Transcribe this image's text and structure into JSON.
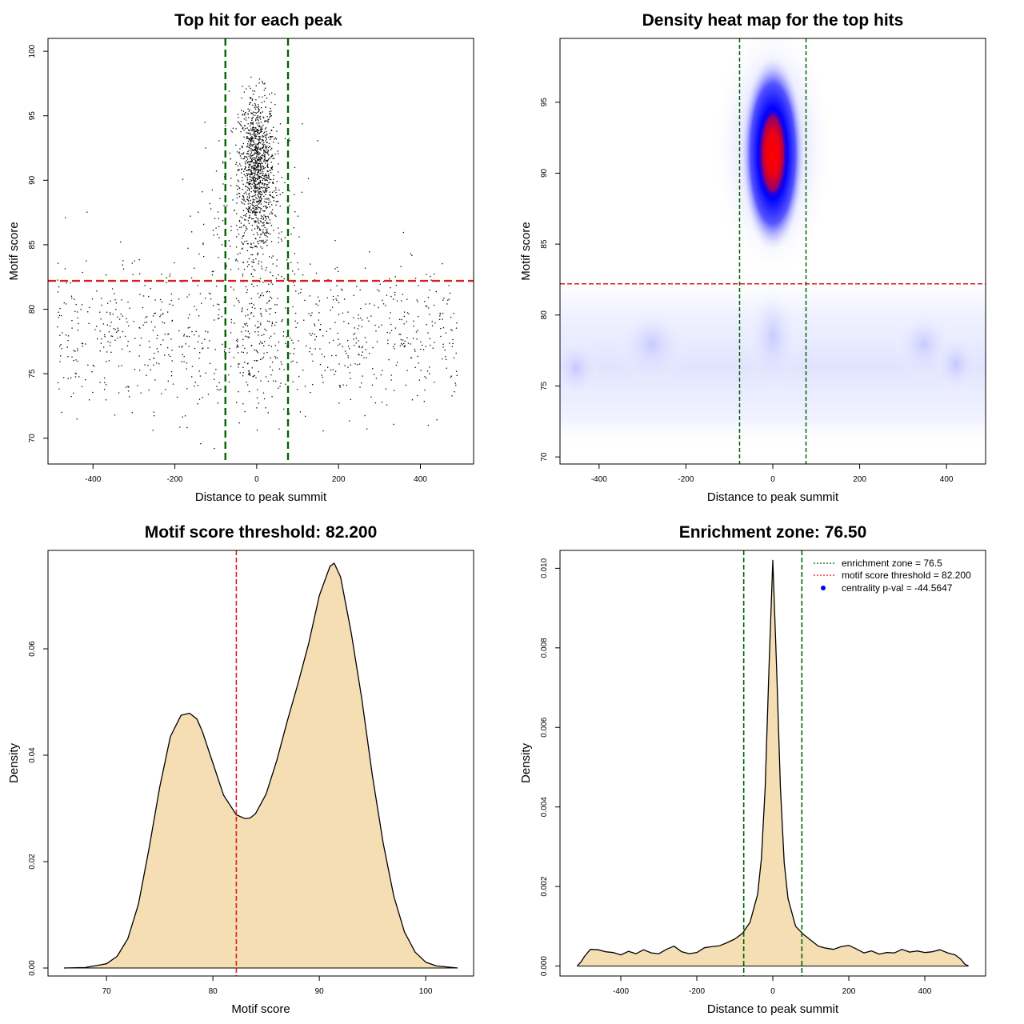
{
  "chart_data": [
    {
      "type": "scatter",
      "title": "Top hit for each peak",
      "xlabel": "Distance to peak summit",
      "ylabel": "Motif score",
      "xlim": [
        -510,
        530
      ],
      "ylim": [
        68,
        101
      ],
      "xticks": [
        -400,
        -200,
        0,
        200,
        400
      ],
      "yticks": [
        70,
        75,
        80,
        85,
        90,
        95,
        100
      ],
      "threshold_score": 82.2,
      "zone_lines": [
        -76.5,
        76.5
      ],
      "clusters": [
        {
          "name": "central enriched hits",
          "x_center": 0,
          "x_spread": 22,
          "y_center": 91,
          "y_spread": 2.8,
          "count": 1100
        },
        {
          "name": "uniform background",
          "x_range": [
            -490,
            490
          ],
          "y_center": 78,
          "y_spread": 2.8,
          "count": 850
        },
        {
          "name": "wide high-score hits",
          "x_center": 0,
          "x_spread": 60,
          "y_center": 87,
          "y_spread": 3.5,
          "count": 250
        },
        {
          "name": "central low-score hits",
          "x_center": 0,
          "x_spread": 30,
          "y_center": 78,
          "y_spread": 3,
          "count": 120
        }
      ]
    },
    {
      "type": "heatmap",
      "title": "Density heat map for the top hits",
      "xlabel": "Distance to peak summit",
      "ylabel": "Motif score",
      "xlim": [
        -490,
        490
      ],
      "ylim": [
        69.5,
        99.5
      ],
      "xticks": [
        -400,
        -200,
        0,
        200,
        400
      ],
      "yticks": [
        70,
        75,
        80,
        85,
        90,
        95
      ],
      "threshold_score": 82.2,
      "zone_lines": [
        -76.5,
        76.5
      ],
      "colormap": [
        "#ffffff",
        "#0000ff",
        "#ff0000"
      ],
      "peak": {
        "x": 0,
        "y": 91.2
      }
    },
    {
      "type": "area",
      "title": "Motif score threshold: 82.200",
      "xlabel": "Motif score",
      "ylabel": "Density",
      "xlim": [
        64.5,
        104.5
      ],
      "ylim": [
        -0.0015,
        0.0785
      ],
      "xticks": [
        70,
        80,
        90,
        100
      ],
      "yticks": [
        0.0,
        0.02,
        0.04,
        0.06
      ],
      "ytick_labels": [
        "0.00",
        "0.02",
        "0.04",
        "0.06"
      ],
      "threshold": 82.2,
      "x": [
        66,
        68,
        70,
        71,
        72,
        73,
        74,
        75,
        76,
        77,
        77.8,
        78.5,
        79,
        80,
        81,
        82.2,
        83,
        83.5,
        84,
        85,
        86,
        87,
        88,
        89,
        90,
        91,
        91.4,
        92,
        93,
        94,
        95,
        96,
        97,
        98,
        99,
        100,
        101,
        103
      ],
      "y": [
        0.0,
        0.0001,
        0.0008,
        0.0022,
        0.0055,
        0.012,
        0.0225,
        0.034,
        0.0435,
        0.0475,
        0.0479,
        0.0468,
        0.0445,
        0.0385,
        0.0325,
        0.0288,
        0.0281,
        0.0282,
        0.029,
        0.0327,
        0.039,
        0.0465,
        0.0535,
        0.061,
        0.07,
        0.0755,
        0.0761,
        0.0735,
        0.063,
        0.0505,
        0.036,
        0.0235,
        0.0135,
        0.0068,
        0.003,
        0.0011,
        0.0004,
        0.0
      ]
    },
    {
      "type": "area",
      "title": "Enrichment zone: 76.50",
      "xlabel": "Distance to peak summit",
      "ylabel": "Density",
      "xlim": [
        -560,
        560
      ],
      "ylim": [
        -0.00025,
        0.01045
      ],
      "xticks": [
        -400,
        -200,
        0,
        200,
        400
      ],
      "yticks": [
        0.0,
        0.002,
        0.004,
        0.006,
        0.008,
        0.01
      ],
      "ytick_labels": [
        "0.000",
        "0.002",
        "0.004",
        "0.006",
        "0.008",
        "0.010"
      ],
      "zone_lines": [
        -76.5,
        76.5
      ],
      "x": [
        -515,
        -505,
        -495,
        -480,
        -460,
        -440,
        -420,
        -400,
        -380,
        -360,
        -340,
        -320,
        -300,
        -280,
        -260,
        -240,
        -220,
        -200,
        -180,
        -160,
        -140,
        -120,
        -100,
        -80,
        -60,
        -40,
        -30,
        -20,
        -10,
        0,
        10,
        20,
        30,
        40,
        60,
        80,
        100,
        120,
        140,
        160,
        180,
        200,
        220,
        240,
        260,
        280,
        300,
        320,
        340,
        360,
        380,
        400,
        420,
        440,
        460,
        480,
        495,
        505,
        515
      ],
      "y": [
        0.0,
        0.0001,
        0.00025,
        0.00042,
        0.00041,
        0.00036,
        0.00034,
        0.00028,
        0.00037,
        0.00031,
        0.00041,
        0.00033,
        0.00031,
        0.00042,
        0.0005,
        0.00036,
        0.00031,
        0.00034,
        0.00046,
        0.00049,
        0.00051,
        0.00059,
        0.00068,
        0.00082,
        0.0011,
        0.0018,
        0.0027,
        0.0045,
        0.0075,
        0.0102,
        0.0075,
        0.0045,
        0.0026,
        0.0017,
        0.001,
        0.0008,
        0.00065,
        0.0005,
        0.00045,
        0.00042,
        0.00049,
        0.00052,
        0.00043,
        0.00033,
        0.00038,
        0.0003,
        0.00034,
        0.00033,
        0.00042,
        0.00035,
        0.00038,
        0.00034,
        0.00036,
        0.00041,
        0.00033,
        0.00028,
        0.00017,
        5e-05,
        0.0
      ],
      "legend": [
        {
          "label": "enrichment zone = 76.5",
          "style": "dotted-line",
          "color": "#006400"
        },
        {
          "label": "motif score threshold = 82.200",
          "style": "dotted-line",
          "color": "#ff0000"
        },
        {
          "label": "centrality p-val = -44.5647",
          "style": "point",
          "color": "#0000ff"
        }
      ],
      "legend_position": "top-right"
    }
  ],
  "colors": {
    "zone": "#006400",
    "threshold": "#dd1c1c",
    "fill": "#f5deb3",
    "point": "#000000"
  }
}
